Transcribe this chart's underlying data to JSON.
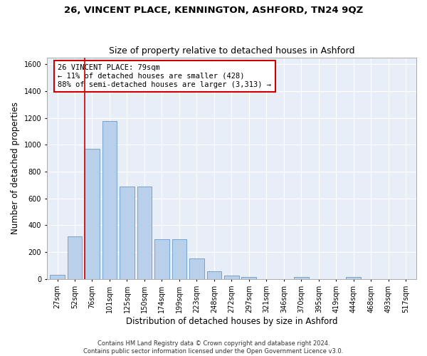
{
  "title": "26, VINCENT PLACE, KENNINGTON, ASHFORD, TN24 9QZ",
  "subtitle": "Size of property relative to detached houses in Ashford",
  "xlabel": "Distribution of detached houses by size in Ashford",
  "ylabel": "Number of detached properties",
  "categories": [
    "27sqm",
    "52sqm",
    "76sqm",
    "101sqm",
    "125sqm",
    "150sqm",
    "174sqm",
    "199sqm",
    "223sqm",
    "248sqm",
    "272sqm",
    "297sqm",
    "321sqm",
    "346sqm",
    "370sqm",
    "395sqm",
    "419sqm",
    "444sqm",
    "468sqm",
    "493sqm",
    "517sqm"
  ],
  "bar_values": [
    30,
    320,
    970,
    1180,
    690,
    690,
    295,
    295,
    155,
    60,
    25,
    15,
    0,
    0,
    15,
    0,
    0,
    15,
    0,
    0,
    0
  ],
  "bar_color": "#b8d0ea",
  "bar_edge_color": "#6699cc",
  "vline_color": "#cc0000",
  "vline_bin": 2,
  "annotation_text": "26 VINCENT PLACE: 79sqm\n← 11% of detached houses are smaller (428)\n88% of semi-detached houses are larger (3,313) →",
  "annotation_box_facecolor": "#ffffff",
  "annotation_box_edgecolor": "#cc0000",
  "ylim": [
    0,
    1650
  ],
  "yticks": [
    0,
    200,
    400,
    600,
    800,
    1000,
    1200,
    1400,
    1600
  ],
  "bg_color": "#e8eef8",
  "grid_color": "#ffffff",
  "fig_facecolor": "#ffffff",
  "title_fontsize": 9.5,
  "subtitle_fontsize": 9,
  "axis_label_fontsize": 8.5,
  "tick_fontsize": 7,
  "annotation_fontsize": 7.5,
  "footer_fontsize": 6,
  "footer": "Contains HM Land Registry data © Crown copyright and database right 2024.\nContains public sector information licensed under the Open Government Licence v3.0."
}
